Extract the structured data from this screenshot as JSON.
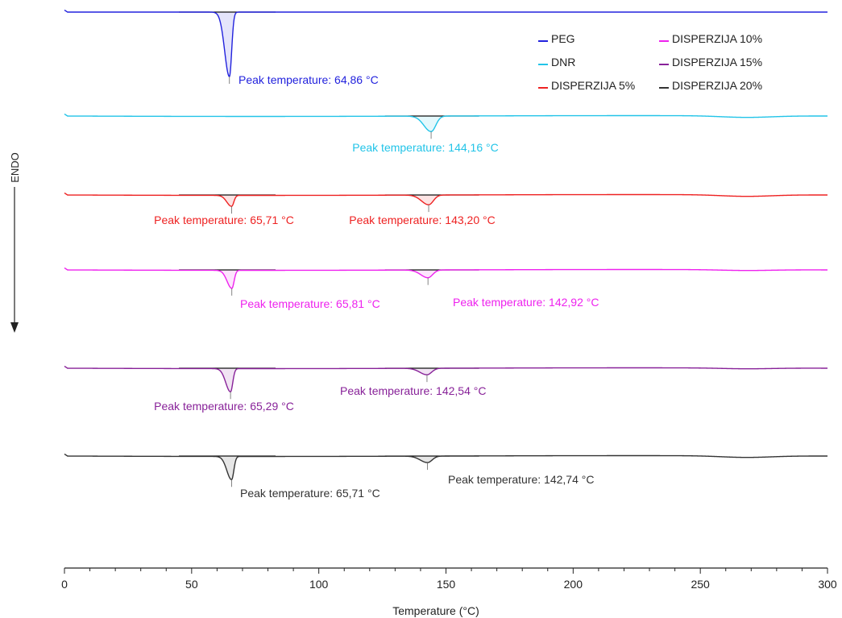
{
  "chart_data": {
    "type": "line",
    "xlabel": "Temperature (°C)",
    "ylabel": "ENDO",
    "xlim": [
      0,
      300
    ],
    "xticks": [
      0,
      50,
      100,
      150,
      200,
      250,
      300
    ],
    "xtick_labels": [
      "0",
      "50",
      "100",
      "150",
      "200",
      "250",
      "300"
    ],
    "legend_position": "top-right",
    "series": [
      {
        "name": "PEG",
        "color": "#2222dd",
        "peaks": [
          {
            "x": 64.86,
            "label": "Peak temperature: 64,86 °C",
            "depth": 1.0
          }
        ]
      },
      {
        "name": "DNR",
        "color": "#22c4e8",
        "peaks": [
          {
            "x": 144.16,
            "label": "Peak temperature: 144,16 °C",
            "depth": 0.24
          }
        ]
      },
      {
        "name": "DISPERZIJA 5%",
        "color": "#ee2222",
        "peaks": [
          {
            "x": 65.71,
            "label": "Peak temperature: 65,71 °C",
            "depth": 0.17
          },
          {
            "x": 143.2,
            "label": "Peak temperature: 143,20 °C",
            "depth": 0.15
          }
        ]
      },
      {
        "name": "DISPERZIJA 10%",
        "color": "#ee22ee",
        "peaks": [
          {
            "x": 65.81,
            "label": "Peak temperature: 65,81 °C",
            "depth": 0.28
          },
          {
            "x": 142.92,
            "label": "Peak temperature: 142,92 °C",
            "depth": 0.12
          }
        ]
      },
      {
        "name": "DISPERZIJA 15%",
        "color": "#882299",
        "peaks": [
          {
            "x": 65.29,
            "label": "Peak temperature: 65,29 °C",
            "depth": 0.36
          },
          {
            "x": 142.54,
            "label": "Peak temperature: 142,54 °C",
            "depth": 0.1
          }
        ]
      },
      {
        "name": "DISPERZIJA 20%",
        "color": "#333333",
        "peaks": [
          {
            "x": 65.71,
            "label": "Peak temperature: 65,71 °C",
            "depth": 0.36
          },
          {
            "x": 142.74,
            "label": "Peak temperature: 142,74 °C",
            "depth": 0.1
          }
        ]
      }
    ]
  }
}
